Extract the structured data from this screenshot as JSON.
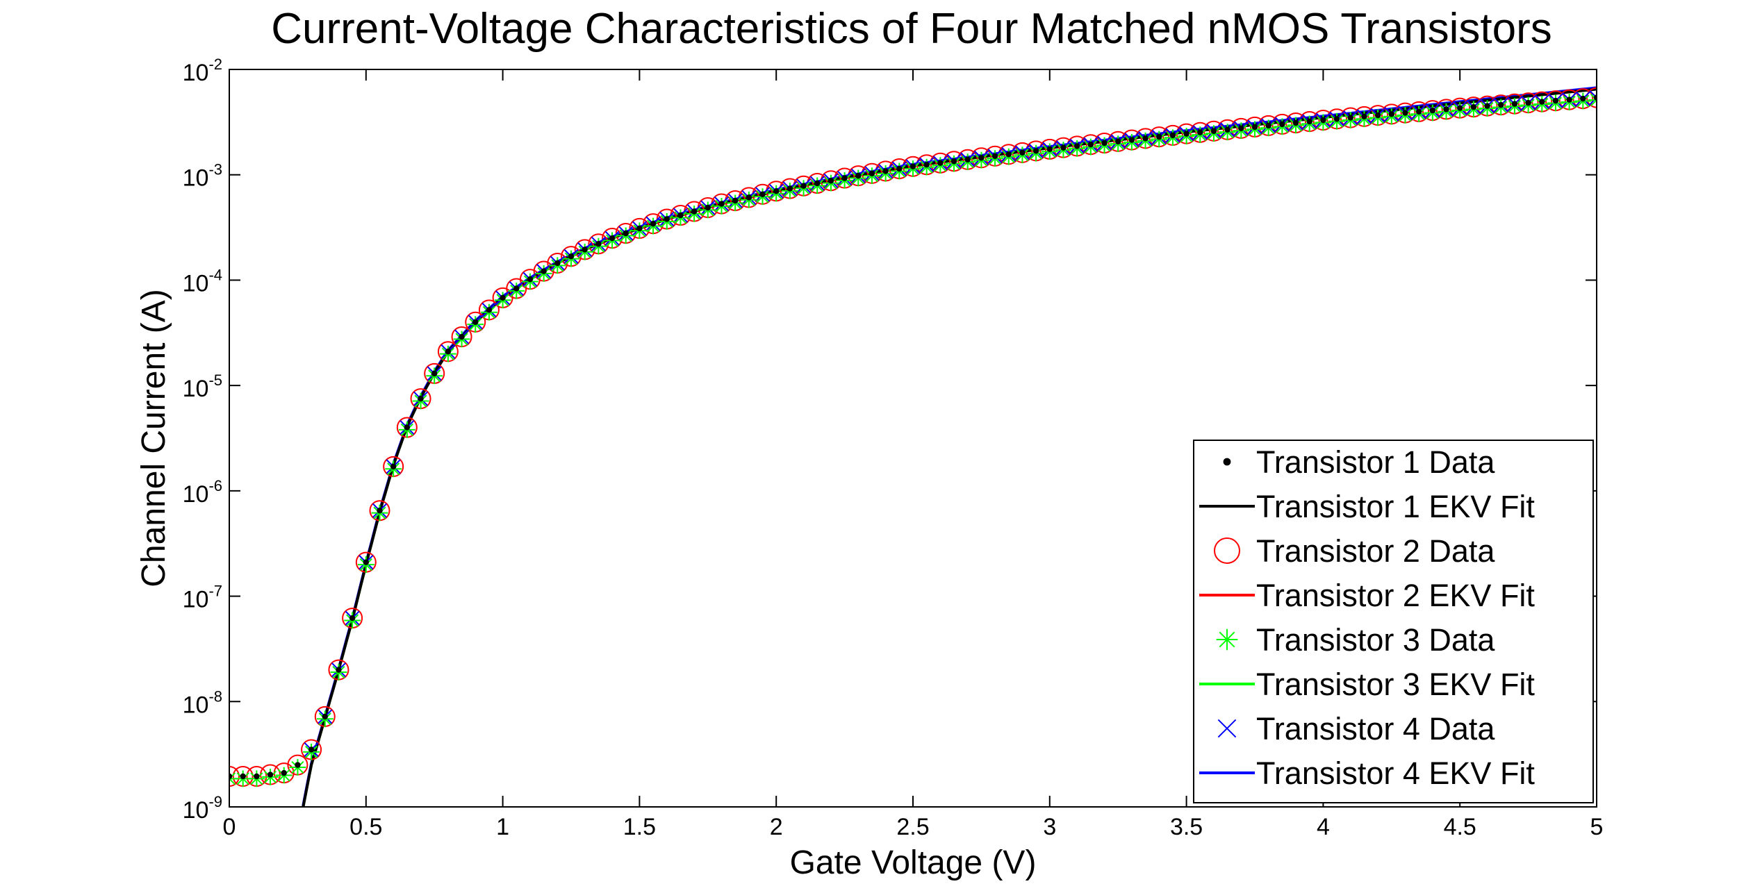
{
  "chart_data": {
    "type": "scatter",
    "title": "Current-Voltage Characteristics of Four Matched nMOS Transistors",
    "xlabel": "Gate Voltage (V)",
    "ylabel": "Channel Current (A)",
    "xlim": [
      0,
      5
    ],
    "ylim": [
      1e-09,
      0.01
    ],
    "yscale": "log",
    "grid": false,
    "legend_position": "bottom-right",
    "x_ticks": [
      "0",
      "0.5",
      "1",
      "1.5",
      "2",
      "2.5",
      "3",
      "3.5",
      "4",
      "4.5",
      "5"
    ],
    "y_ticks": [
      {
        "base": "10",
        "exp": "-9"
      },
      {
        "base": "10",
        "exp": "-8"
      },
      {
        "base": "10",
        "exp": "-7"
      },
      {
        "base": "10",
        "exp": "-6"
      },
      {
        "base": "10",
        "exp": "-5"
      },
      {
        "base": "10",
        "exp": "-4"
      },
      {
        "base": "10",
        "exp": "-3"
      },
      {
        "base": "10",
        "exp": "-2"
      }
    ],
    "x": [
      0,
      0.05,
      0.1,
      0.15,
      0.2,
      0.25,
      0.3,
      0.35,
      0.4,
      0.45,
      0.5,
      0.55,
      0.6,
      0.65,
      0.7,
      0.75,
      0.8,
      0.85,
      0.9,
      0.95,
      1.0,
      1.05,
      1.1,
      1.15,
      1.2,
      1.25,
      1.3,
      1.35,
      1.4,
      1.45,
      1.5,
      1.55,
      1.6,
      1.65,
      1.7,
      1.75,
      1.8,
      1.85,
      1.9,
      1.95,
      2.0,
      2.05,
      2.1,
      2.15,
      2.2,
      2.25,
      2.3,
      2.35,
      2.4,
      2.45,
      2.5,
      2.55,
      2.6,
      2.65,
      2.7,
      2.75,
      2.8,
      2.85,
      2.9,
      2.95,
      3.0,
      3.05,
      3.1,
      3.15,
      3.2,
      3.25,
      3.3,
      3.35,
      3.4,
      3.45,
      3.5,
      3.55,
      3.6,
      3.65,
      3.7,
      3.75,
      3.8,
      3.85,
      3.9,
      3.95,
      4.0,
      4.05,
      4.1,
      4.15,
      4.2,
      4.25,
      4.3,
      4.35,
      4.4,
      4.45,
      4.5,
      4.55,
      4.6,
      4.65,
      4.7,
      4.75,
      4.8,
      4.85,
      4.9,
      4.95,
      5.0
    ],
    "anchors": {
      "description_free": true,
      "v": [
        0,
        0.1,
        0.2,
        0.25,
        0.3,
        0.35,
        0.4,
        0.45,
        0.5,
        0.55,
        0.6,
        0.65,
        0.7,
        0.75,
        0.8,
        0.9,
        1.0,
        1.1,
        1.2,
        1.3,
        1.4,
        1.5,
        1.6,
        1.8,
        2.0,
        2.25,
        2.5,
        3.0,
        3.5,
        4.0,
        4.5,
        5.0
      ],
      "i": [
        1.95e-09,
        1.95e-09,
        2.1e-09,
        2.5e-09,
        3.5e-09,
        7.2e-09,
        2e-08,
        6.2e-08,
        2.1e-07,
        6.5e-07,
        1.7e-06,
        4e-06,
        7.5e-06,
        1.3e-05,
        2.1e-05,
        4e-05,
        6.8e-05,
        0.000102,
        0.000145,
        0.000195,
        0.00025,
        0.00031,
        0.00038,
        0.00053,
        0.0007,
        0.00093,
        0.0012,
        0.00175,
        0.00245,
        0.0033,
        0.0043,
        0.0054
      ]
    },
    "fit": {
      "v": [
        0.27,
        0.3,
        0.35,
        0.4,
        0.45,
        0.5,
        0.55,
        0.6,
        0.65,
        0.7,
        0.75,
        0.8,
        0.9,
        1.0,
        1.1,
        1.2,
        1.3,
        1.4,
        1.5,
        1.6,
        1.8,
        2.0,
        2.25,
        2.5,
        3.0,
        3.5,
        4.0,
        4.5,
        5.0
      ],
      "i": [
        1e-09,
        2.5e-09,
        7e-09,
        2e-08,
        6e-08,
        2e-07,
        6.3e-07,
        1.75e-06,
        4.1e-06,
        7.7e-06,
        1.32e-05,
        2.1e-05,
        4e-05,
        6.8e-05,
        0.000102,
        0.000145,
        0.000195,
        0.00025,
        0.00031,
        0.00038,
        0.00053,
        0.0007,
        0.00094,
        0.00122,
        0.0018,
        0.00255,
        0.0035,
        0.0048,
        0.0065
      ]
    },
    "series": [
      {
        "name": "Transistor 1 Data",
        "kind": "data",
        "marker": "dot",
        "color": "#000000",
        "y_factor": 1.0,
        "x_start": 0
      },
      {
        "name": "Transistor 1 EKV Fit",
        "kind": "fit",
        "color": "#000000",
        "y_factor": 1.0
      },
      {
        "name": "Transistor 2 Data",
        "kind": "data",
        "marker": "circle",
        "color": "#ff0000",
        "y_factor": 1.0,
        "x_start": 0
      },
      {
        "name": "Transistor 2 EKV Fit",
        "kind": "fit",
        "color": "#ff0000",
        "y_factor": 1.0
      },
      {
        "name": "Transistor 3 Data",
        "kind": "data",
        "marker": "asterisk",
        "color": "#00ff00",
        "y_factor": 0.95,
        "x_start": 0
      },
      {
        "name": "Transistor 3 EKV Fit",
        "kind": "fit",
        "color": "#00ff00",
        "y_factor": 1.0
      },
      {
        "name": "Transistor 4 Data",
        "kind": "data",
        "marker": "x",
        "color": "#0000ff",
        "y_factor": 1.0,
        "x_start": 0.3
      },
      {
        "name": "Transistor 4 EKV Fit",
        "kind": "fit",
        "color": "#0000ff",
        "y_factor": 1.03
      }
    ]
  }
}
